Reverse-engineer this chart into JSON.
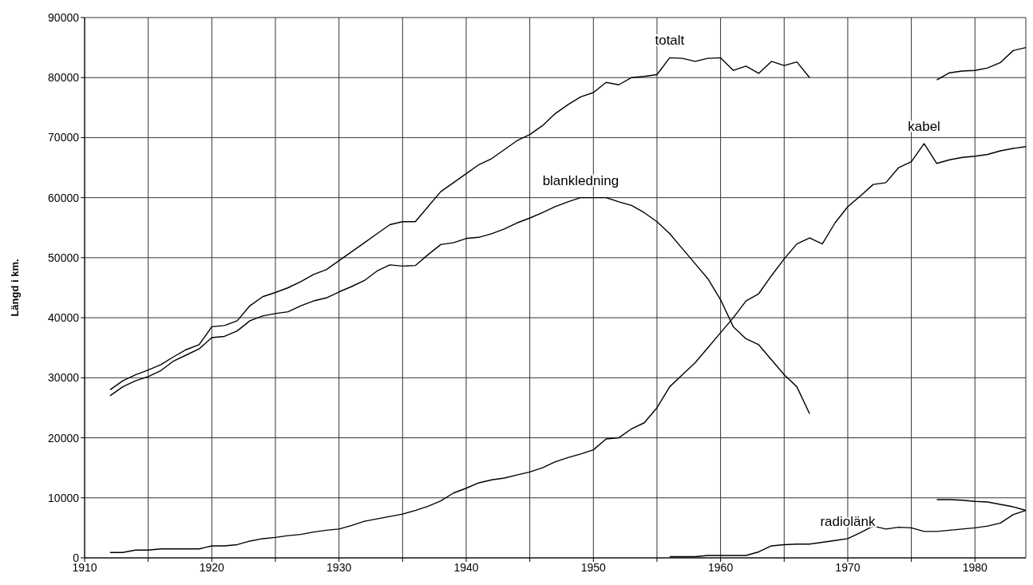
{
  "chart_data": {
    "type": "line",
    "ylabel": "Längd i km.",
    "xlim": [
      1910,
      1984
    ],
    "ylim": [
      0,
      90000
    ],
    "xticks": [
      1910,
      {
        "value": 1915,
        "label": null
      },
      1920,
      {
        "value": 1925,
        "label": null
      },
      1930,
      {
        "value": 1935,
        "label": null
      },
      1940,
      {
        "value": 1945,
        "label": null
      },
      1950,
      {
        "value": 1955,
        "label": null
      },
      1960,
      {
        "value": 1965,
        "label": null
      },
      1970,
      {
        "value": 1975,
        "label": null
      },
      1980
    ],
    "yticks": [
      0,
      10000,
      20000,
      30000,
      40000,
      50000,
      60000,
      70000,
      80000,
      90000
    ],
    "grid": true,
    "legend": false,
    "marker": "none",
    "line_style": "solid",
    "x": [
      1912,
      1913,
      1914,
      1915,
      1916,
      1917,
      1918,
      1919,
      1920,
      1921,
      1922,
      1923,
      1924,
      1925,
      1926,
      1927,
      1928,
      1929,
      1930,
      1931,
      1932,
      1933,
      1934,
      1935,
      1936,
      1937,
      1938,
      1939,
      1940,
      1941,
      1942,
      1943,
      1944,
      1945,
      1946,
      1947,
      1948,
      1949,
      1950,
      1951,
      1952,
      1953,
      1954,
      1955,
      1956,
      1957,
      1958,
      1959,
      1960,
      1961,
      1962,
      1963,
      1964,
      1965,
      1966,
      1967,
      1968,
      1969,
      1970,
      1971,
      1972,
      1973,
      1974,
      1975,
      1976,
      1977,
      1978,
      1979,
      1980,
      1981,
      1982,
      1983,
      1984
    ],
    "series": [
      {
        "name": "totalt",
        "color": "#000000",
        "values": [
          28000,
          29500,
          30500,
          31300,
          32200,
          33500,
          34700,
          35500,
          38500,
          38700,
          39500,
          42000,
          43500,
          44200,
          45000,
          46000,
          47200,
          48000,
          49500,
          51000,
          52500,
          54000,
          55500,
          56000,
          56000,
          58500,
          61000,
          62500,
          64000,
          65500,
          66500,
          68000,
          69500,
          70500,
          72000,
          74000,
          75500,
          76800,
          77500,
          79200,
          78800,
          80000,
          80200,
          80500,
          83300,
          83200,
          82700,
          83200,
          83300,
          81200,
          81900,
          80700,
          82700,
          82000,
          82600,
          80000,
          null,
          null,
          null,
          null,
          null,
          null,
          null,
          null,
          null,
          79600,
          80800,
          81100,
          81200,
          81600,
          82500,
          84500,
          85000
        ]
      },
      {
        "name": "blankledning",
        "color": "#000000",
        "values": [
          27000,
          28500,
          29500,
          30200,
          31200,
          32800,
          33800,
          34800,
          36700,
          36900,
          37800,
          39500,
          40300,
          40700,
          41000,
          42000,
          42800,
          43300,
          44300,
          45200,
          46200,
          47800,
          48800,
          48600,
          48700,
          50500,
          52200,
          52500,
          53200,
          53400,
          54000,
          54800,
          55800,
          56600,
          57500,
          58500,
          59300,
          60000,
          60000,
          60000,
          59300,
          58700,
          57500,
          56000,
          54000,
          51500,
          49000,
          46500,
          43000,
          38500,
          36500,
          35500,
          33000,
          30500,
          28500,
          24000,
          null,
          null,
          null,
          null,
          null,
          null,
          null,
          null,
          null,
          null,
          null,
          null,
          null,
          null,
          null,
          null,
          null
        ]
      },
      {
        "name": "kabel",
        "color": "#000000",
        "values": [
          900,
          900,
          1300,
          1300,
          1500,
          1500,
          1500,
          1500,
          2000,
          2000,
          2200,
          2800,
          3200,
          3400,
          3700,
          3900,
          4300,
          4600,
          4800,
          5400,
          6100,
          6500,
          6900,
          7300,
          7900,
          8600,
          9500,
          10800,
          11600,
          12500,
          13000,
          13300,
          13800,
          14300,
          15000,
          16000,
          16700,
          17300,
          18000,
          19800,
          20000,
          21500,
          22500,
          25000,
          28500,
          30500,
          32500,
          35000,
          37500,
          40000,
          42800,
          44000,
          47000,
          49800,
          52300,
          53300,
          52300,
          55800,
          58500,
          60300,
          62200,
          62500,
          65000,
          66000,
          69000,
          65700,
          66300,
          66700,
          66900,
          67200,
          67800,
          68200,
          68500
        ]
      },
      {
        "name": "radiolänk",
        "color": "#000000",
        "values": [
          null,
          null,
          null,
          null,
          null,
          null,
          null,
          null,
          null,
          null,
          null,
          null,
          null,
          null,
          null,
          null,
          null,
          null,
          null,
          null,
          null,
          null,
          null,
          null,
          null,
          null,
          null,
          null,
          null,
          null,
          null,
          null,
          null,
          null,
          null,
          null,
          null,
          null,
          null,
          null,
          null,
          null,
          null,
          null,
          200,
          200,
          200,
          400,
          400,
          400,
          400,
          1000,
          2000,
          2200,
          2300,
          2300,
          2600,
          2900,
          3200,
          4200,
          5300,
          4800,
          5100,
          5000,
          4400,
          4400,
          4600,
          4800,
          5000,
          5300,
          5800,
          7200,
          7900
        ]
      },
      {
        "color": "#000000",
        "values": [
          null,
          null,
          null,
          null,
          null,
          null,
          null,
          null,
          null,
          null,
          null,
          null,
          null,
          null,
          null,
          null,
          null,
          null,
          null,
          null,
          null,
          null,
          null,
          null,
          null,
          null,
          null,
          null,
          null,
          null,
          null,
          null,
          null,
          null,
          null,
          null,
          null,
          null,
          null,
          null,
          null,
          null,
          null,
          null,
          null,
          null,
          null,
          null,
          null,
          null,
          null,
          null,
          null,
          null,
          null,
          null,
          null,
          null,
          null,
          null,
          null,
          null,
          null,
          null,
          null,
          9700,
          9700,
          9600,
          9400,
          9300,
          8900,
          8500,
          7900
        ]
      }
    ]
  }
}
